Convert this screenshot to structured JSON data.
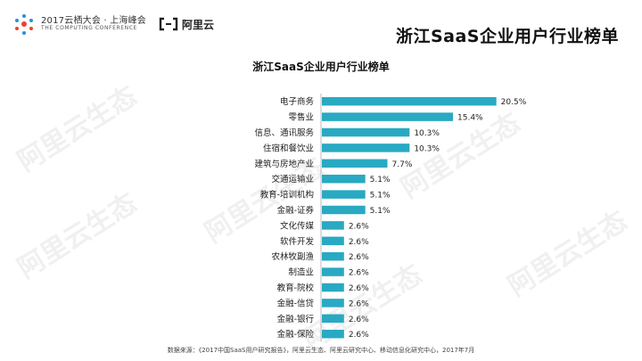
{
  "header": {
    "conference_line1": "2017云栖大会 · 上海峰会",
    "conference_line2": "THE COMPUTING CONFERENCE",
    "brand": "阿里云",
    "title": "浙江SaaS企业用户行业榜单"
  },
  "watermark_text": "阿里云生态",
  "source_text": "数据来源：《2017中国SaaS用户研究报告》，阿里云生态、阿里云研究中心、移动信息化研究中心，2017年7月",
  "colors": {
    "bar": "#29a9c2",
    "axis": "#bbbbbb",
    "conf_accent": "#e8442e"
  },
  "chart_data": {
    "type": "bar",
    "orientation": "horizontal",
    "title": "浙江SaaS企业用户行业榜单",
    "categories": [
      "电子商务",
      "零售业",
      "信息、通讯服务",
      "住宿和餐饮业",
      "建筑与房地产业",
      "交通运输业",
      "教育-培训机构",
      "金融-证券",
      "文化传媒",
      "软件开发",
      "农林牧副渔",
      "制造业",
      "教育-院校",
      "金融-信贷",
      "金融-银行",
      "金融-保险"
    ],
    "values": [
      20.5,
      15.4,
      10.3,
      10.3,
      7.7,
      5.1,
      5.1,
      5.1,
      2.6,
      2.6,
      2.6,
      2.6,
      2.6,
      2.6,
      2.6,
      2.6
    ],
    "value_labels": [
      "20.5%",
      "15.4%",
      "10.3%",
      "10.3%",
      "7.7%",
      "5.1%",
      "5.1%",
      "5.1%",
      "2.6%",
      "2.6%",
      "2.6%",
      "2.6%",
      "2.6%",
      "2.6%",
      "2.6%",
      "2.6%"
    ],
    "xlim": [
      0,
      22
    ],
    "grid": false,
    "legend": "none"
  }
}
